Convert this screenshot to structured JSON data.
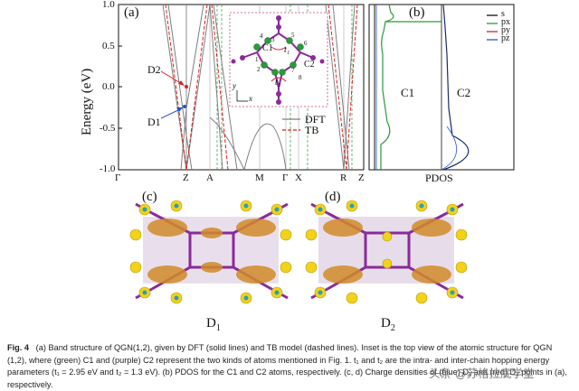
{
  "panel_a": {
    "label": "(a)",
    "ylabel": "Energy (eV)",
    "yticks": [
      "1.0",
      "0.5",
      "0.0",
      "-0.5",
      "-1.0"
    ],
    "xticks": [
      "Γ",
      "Z",
      "A",
      "M",
      "Γ",
      "X",
      "R",
      "Z"
    ],
    "d2": "D2",
    "d1": "D1",
    "legend": [
      "DFT",
      "TB"
    ],
    "inset": {
      "c1": "C1",
      "c2": "C2",
      "t1": "t₁",
      "t2": "t₂",
      "y": "y",
      "x": "x",
      "numbers": [
        "1",
        "2",
        "3",
        "4",
        "5",
        "6",
        "7",
        "8"
      ]
    }
  },
  "panel_b": {
    "label": "(b)",
    "c1": "C1",
    "c2": "C2",
    "xlabel": "PDOS",
    "legend": [
      "s",
      "px",
      "py",
      "pz"
    ]
  },
  "panel_c": {
    "label": "(c)",
    "sublabel": "D",
    "sub": "1"
  },
  "panel_d": {
    "label": "(d)",
    "sublabel": "D",
    "sub": "2"
  },
  "caption": {
    "fig": "Fig. 4",
    "text": "(a) Band structure of QGN(1,2), given by DFT (solid lines) and TB model (dashed lines). Inset is the top view of the atomic structure for QGN (1,2), where (green) C1 and (purple) C2 represent the two kinds of atoms mentioned in Fig. 1. t₁ and t₂ are the intra- and inter-chain hopping energy parameters (t₁ = 2.95 eV and t₂ = 1.3 eV). (b) PDOS for the C1 and C2 atoms, respectively. (c, d) Charge densities of (blue) D₁ and (red) D₂ points in (a), respectively."
  },
  "watermark": "头条 @苏格拉底学堂",
  "colors": {
    "dft": "#7f7f7f",
    "tb": "#d62020",
    "green": "#2a9a3a",
    "purple": "#8a2a9a",
    "orange": "#e08a20"
  }
}
